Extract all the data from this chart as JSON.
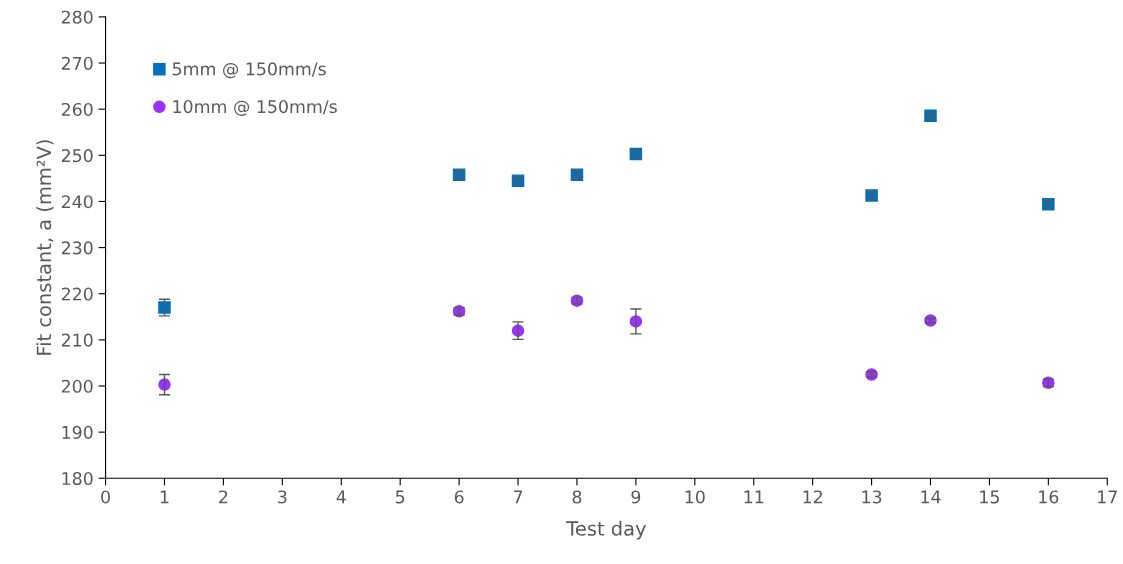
{
  "chart_data": {
    "type": "scatter",
    "xlabel": "Test day",
    "ylabel": "Fit constant, a (mm²V)",
    "xlim": [
      0,
      17
    ],
    "xticks": [
      0,
      1,
      2,
      3,
      4,
      5,
      6,
      7,
      8,
      9,
      10,
      11,
      12,
      13,
      14,
      15,
      16,
      17
    ],
    "ylim": [
      180,
      280
    ],
    "yticks": [
      180,
      190,
      200,
      210,
      220,
      230,
      240,
      250,
      260,
      270,
      280
    ],
    "x": [
      1,
      6,
      7,
      8,
      9,
      13,
      14,
      16
    ],
    "grid": false,
    "legend": "top left",
    "series": [
      {
        "name": "5mm @ 150mm/s",
        "color": "#0070c0",
        "marker": "square",
        "values": [
          217.0,
          245.8,
          244.5,
          245.8,
          250.3,
          241.3,
          258.6,
          239.4
        ],
        "errors": [
          1.8,
          0.8,
          0.7,
          0.7,
          0.6,
          0.8,
          0.6,
          0.8
        ]
      },
      {
        "name": "10mm @ 150mm/s",
        "color": "#9b30ff",
        "marker": "circle",
        "values": [
          200.3,
          216.2,
          212.0,
          218.5,
          214.0,
          202.5,
          214.2,
          200.7
        ],
        "errors": [
          2.2,
          0.8,
          1.9,
          0.7,
          2.7,
          0.6,
          0.5,
          0.8
        ]
      }
    ]
  }
}
